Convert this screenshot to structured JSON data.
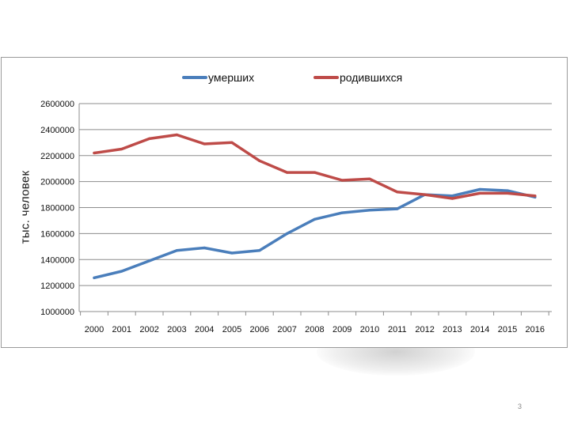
{
  "page_number": "3",
  "colors": {
    "deaths": "#4a7ebb",
    "births": "#be4b48",
    "grid": "#8c8c8c"
  },
  "chart_data": {
    "type": "line",
    "title": "",
    "xlabel": "",
    "ylabel": "тыс. человек",
    "ylim": [
      1000000,
      2600000
    ],
    "yticks": [
      1000000,
      1200000,
      1400000,
      1600000,
      1800000,
      2000000,
      2200000,
      2400000,
      2600000
    ],
    "grid": true,
    "legend_position": "top",
    "categories": [
      "2000",
      "2001",
      "2002",
      "2003",
      "2004",
      "2005",
      "2006",
      "2007",
      "2008",
      "2009",
      "2010",
      "2011",
      "2012",
      "2013",
      "2014",
      "2015",
      "2016"
    ],
    "series": [
      {
        "name": "умерших",
        "color": "#4a7ebb",
        "values": [
          1260000,
          1310000,
          1390000,
          1470000,
          1490000,
          1450000,
          1470000,
          1600000,
          1710000,
          1760000,
          1780000,
          1790000,
          1900000,
          1890000,
          1940000,
          1930000,
          1880000
        ]
      },
      {
        "name": "родившихся",
        "color": "#be4b48",
        "values": [
          2220000,
          2250000,
          2330000,
          2360000,
          2290000,
          2300000,
          2160000,
          2070000,
          2070000,
          2010000,
          2020000,
          1920000,
          1900000,
          1870000,
          1910000,
          1910000,
          1890000
        ]
      }
    ]
  }
}
